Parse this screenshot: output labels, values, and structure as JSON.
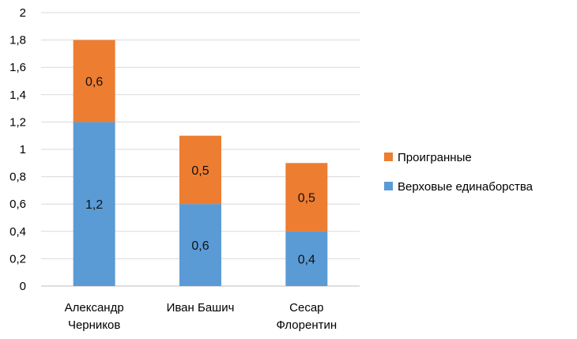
{
  "chart_data": {
    "type": "bar",
    "stacked": true,
    "categories": [
      [
        "Александр",
        "Черников"
      ],
      [
        "Иван Башич"
      ],
      [
        "Сесар",
        "Флорентин"
      ]
    ],
    "series": [
      {
        "name": "Верховые единаборства",
        "values": [
          1.2,
          0.6,
          0.4
        ],
        "labels": [
          "1,2",
          "0,6",
          "0,4"
        ],
        "color": "#5b9bd5"
      },
      {
        "name": "Проигранные",
        "values": [
          0.6,
          0.5,
          0.5
        ],
        "labels": [
          "0,6",
          "0,5",
          "0,5"
        ],
        "color": "#ed7d31"
      }
    ],
    "ylim": [
      0,
      2
    ],
    "yticks": [
      {
        "value": 0,
        "label": "0"
      },
      {
        "value": 0.2,
        "label": "0,2"
      },
      {
        "value": 0.4,
        "label": "0,4"
      },
      {
        "value": 0.6,
        "label": "0,6"
      },
      {
        "value": 0.8,
        "label": "0,8"
      },
      {
        "value": 1,
        "label": "1"
      },
      {
        "value": 1.2,
        "label": "1,2"
      },
      {
        "value": 1.4,
        "label": "1,4"
      },
      {
        "value": 1.6,
        "label": "1,6"
      },
      {
        "value": 1.8,
        "label": "1,8"
      },
      {
        "value": 2,
        "label": "2"
      }
    ],
    "grid": true,
    "legend": {
      "position": "right",
      "entries": [
        {
          "name": "Проигранные",
          "color": "#ed7d31"
        },
        {
          "name": "Верховые единаборства",
          "color": "#5b9bd5"
        }
      ]
    },
    "colors": {
      "gridline": "#d9d9d9",
      "axis": "#bfbfbf"
    }
  }
}
